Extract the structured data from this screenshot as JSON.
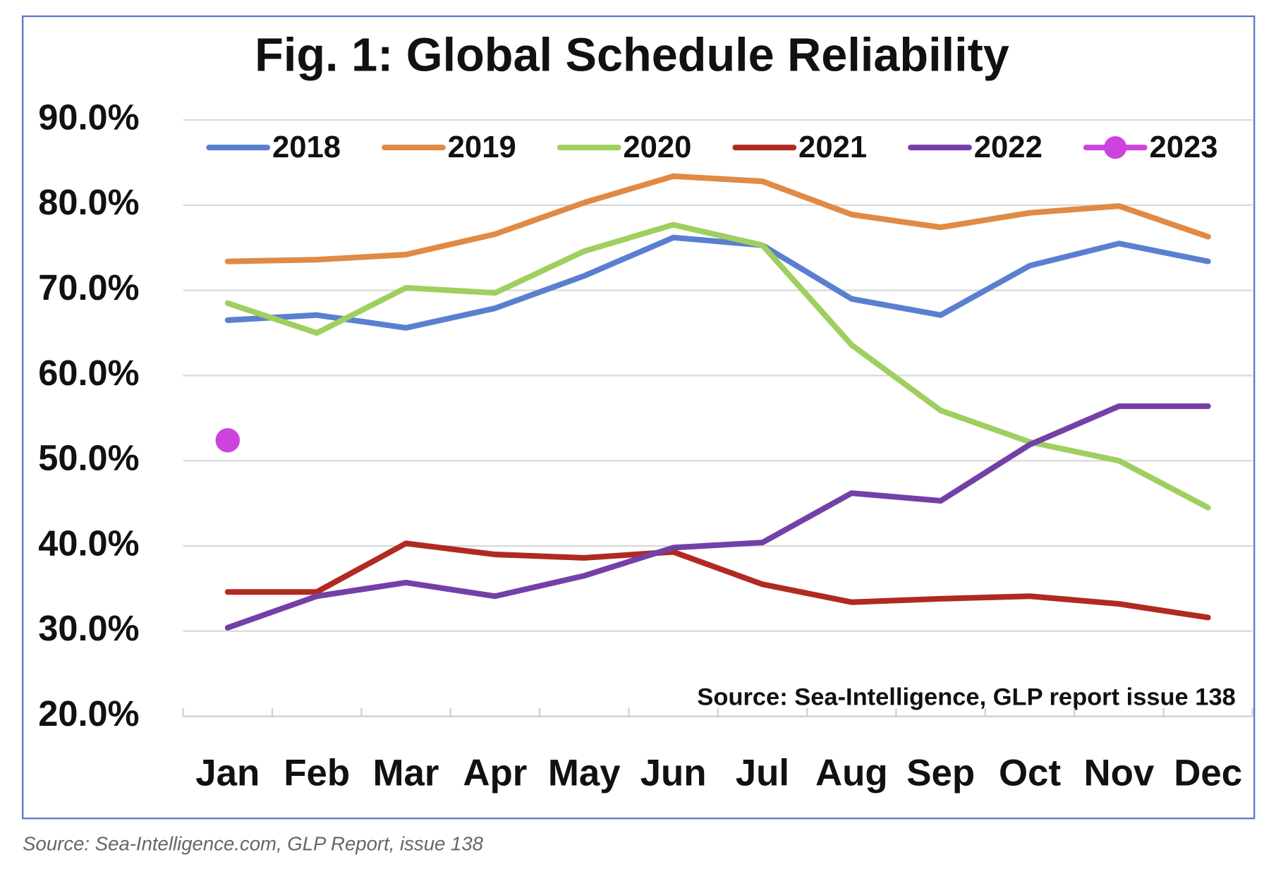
{
  "chart_data": {
    "type": "line",
    "title": "Fig. 1: Global Schedule Reliability",
    "annotation": "Source: Sea-Intelligence, GLP report issue 138",
    "caption": "Source: Sea-Intelligence.com, GLP Report, issue 138",
    "categories": [
      "Jan",
      "Feb",
      "Mar",
      "Apr",
      "May",
      "Jun",
      "Jul",
      "Aug",
      "Sep",
      "Oct",
      "Nov",
      "Dec"
    ],
    "series": [
      {
        "name": "2018",
        "color": "#5b7fd0",
        "values": [
          66.5,
          67.1,
          65.6,
          67.9,
          71.7,
          76.2,
          75.3,
          69.0,
          67.1,
          72.9,
          75.5,
          73.4
        ]
      },
      {
        "name": "2019",
        "color": "#e08a45",
        "values": [
          73.4,
          73.6,
          74.2,
          76.6,
          80.3,
          83.4,
          82.8,
          78.9,
          77.4,
          79.1,
          79.9,
          76.3
        ]
      },
      {
        "name": "2020",
        "color": "#9fcf5f",
        "values": [
          68.5,
          65.0,
          70.3,
          69.7,
          74.6,
          77.7,
          75.3,
          63.6,
          55.9,
          52.2,
          50.0,
          44.5
        ]
      },
      {
        "name": "2021",
        "color": "#b02a22",
        "values": [
          34.6,
          34.6,
          40.3,
          39.0,
          38.6,
          39.3,
          35.5,
          33.4,
          33.8,
          34.1,
          33.2,
          31.6
        ]
      },
      {
        "name": "2022",
        "color": "#7340a8",
        "values": [
          30.4,
          34.1,
          35.7,
          34.1,
          36.5,
          39.8,
          40.4,
          46.2,
          45.3,
          51.9,
          56.4,
          56.4
        ]
      },
      {
        "name": "2023",
        "color": "#cc44dd",
        "marker": "circle",
        "values": [
          52.4,
          null,
          null,
          null,
          null,
          null,
          null,
          null,
          null,
          null,
          null,
          null
        ]
      }
    ],
    "ylim": [
      20,
      90
    ],
    "yticks": [
      {
        "value": 20,
        "label": "20.0%"
      },
      {
        "value": 30,
        "label": "30.0%"
      },
      {
        "value": 40,
        "label": "40.0%"
      },
      {
        "value": 50,
        "label": "50.0%"
      },
      {
        "value": 60,
        "label": "60.0%"
      },
      {
        "value": 70,
        "label": "70.0%"
      },
      {
        "value": 80,
        "label": "80.0%"
      },
      {
        "value": 90,
        "label": "90.0%"
      }
    ],
    "grid": true,
    "legend": "top"
  }
}
